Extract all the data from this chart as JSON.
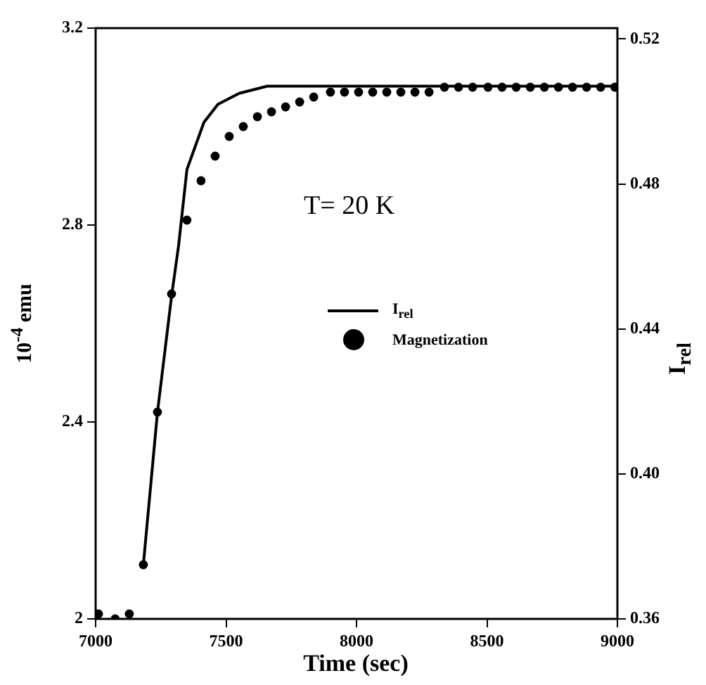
{
  "chart_data": {
    "type": "line",
    "xlabel": "Time (sec)",
    "ylabel": "10$^{-4}$ emu",
    "y2label": "I$_{rel}$",
    "annotations": [
      "T= 20 K"
    ],
    "xlim": [
      7000,
      9000
    ],
    "xticks": [
      7000,
      7500,
      8000,
      8500,
      9000
    ],
    "ylim": [
      2,
      3.2
    ],
    "yticks": [
      2,
      2.4,
      2.8,
      3.2
    ],
    "y2lim": [
      0.36,
      0.523
    ],
    "y2ticks": [
      0.36,
      {
        "value": 0.4,
        "label": "0.40"
      },
      0.44,
      0.48,
      0.52
    ],
    "grid": false,
    "legend": "right",
    "series": [
      {
        "name": "I$_{rel}$",
        "axis": "y2",
        "color": "#000000",
        "marker": "none",
        "line_style": "solid",
        "x": [
          7183,
          7237,
          7291,
          7318,
          7350,
          7415,
          7469,
          7550,
          7658,
          7927,
          8251,
          9000
        ],
        "values": [
          0.375,
          0.417,
          0.449,
          0.463,
          0.484,
          0.497,
          0.502,
          0.505,
          0.507,
          0.507,
          0.507,
          0.507
        ]
      },
      {
        "name": "Magnetization",
        "type": "scatter",
        "color": "#000000",
        "marker": "circle",
        "x": [
          7011,
          7075,
          7129,
          7183,
          7237,
          7291,
          7350,
          7404,
          7458,
          7512,
          7566,
          7620,
          7674,
          7728,
          7782,
          7836,
          7900,
          7954,
          8008,
          8062,
          8116,
          8170,
          8224,
          8278,
          8337,
          8391,
          8445,
          8504,
          8558,
          8612,
          8666,
          8720,
          8774,
          8828,
          8882,
          8936,
          8990
        ],
        "values": [
          2.01,
          2.0,
          2.01,
          2.11,
          2.42,
          2.66,
          2.81,
          2.89,
          2.94,
          2.98,
          3.0,
          3.02,
          3.03,
          3.04,
          3.05,
          3.06,
          3.07,
          3.07,
          3.07,
          3.07,
          3.07,
          3.07,
          3.07,
          3.07,
          3.08,
          3.08,
          3.08,
          3.08,
          3.08,
          3.08,
          3.08,
          3.08,
          3.08,
          3.08,
          3.08,
          3.08,
          3.08
        ]
      }
    ]
  }
}
